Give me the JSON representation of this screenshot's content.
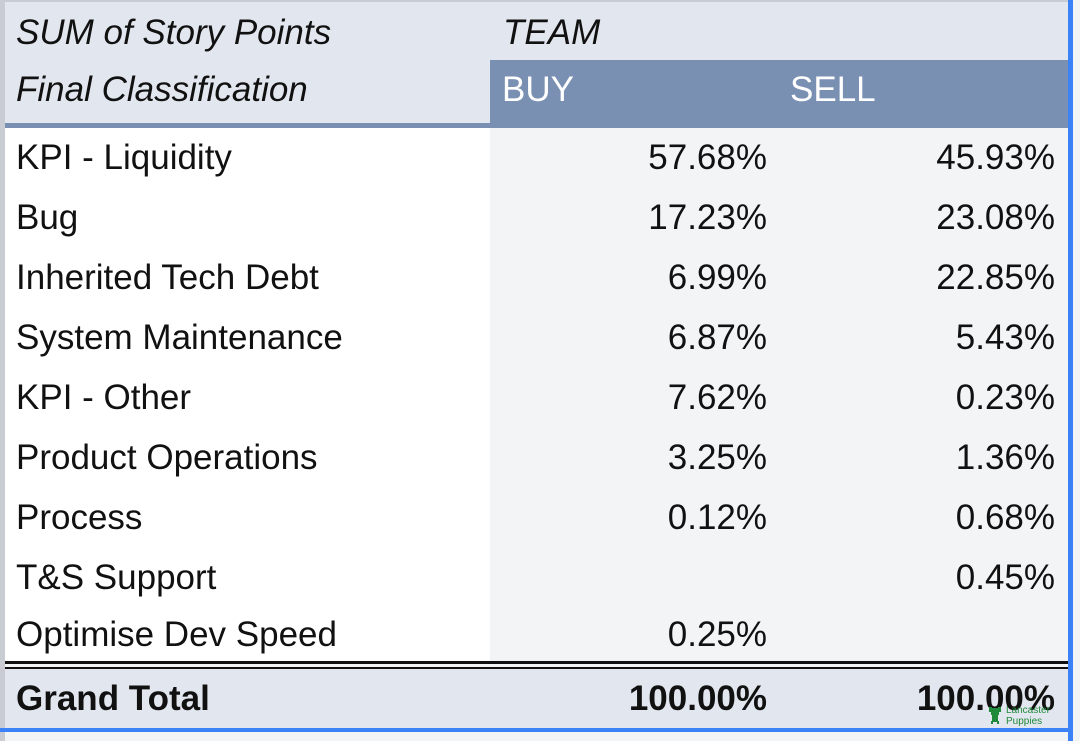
{
  "pivot": {
    "corner_value_label": "SUM of Story Points",
    "column_field_label": "TEAM",
    "row_field_label": "Final Classification",
    "columns": [
      "BUY",
      "SELL"
    ],
    "rows": [
      {
        "label": "KPI - Liquidity",
        "buy": "57.68%",
        "sell": "45.93%"
      },
      {
        "label": "Bug",
        "buy": "17.23%",
        "sell": "23.08%"
      },
      {
        "label": "Inherited Tech Debt",
        "buy": "6.99%",
        "sell": "22.85%"
      },
      {
        "label": "System Maintenance",
        "buy": "6.87%",
        "sell": "5.43%"
      },
      {
        "label": "KPI - Other",
        "buy": "7.62%",
        "sell": "0.23%"
      },
      {
        "label": "Product Operations",
        "buy": "3.25%",
        "sell": "1.36%"
      },
      {
        "label": "Process",
        "buy": "0.12%",
        "sell": "0.68%"
      },
      {
        "label": "T&S Support",
        "buy": "",
        "sell": "0.45%"
      },
      {
        "label": "Optimise Dev Speed",
        "buy": "0.25%",
        "sell": ""
      }
    ],
    "grand_total": {
      "label": "Grand Total",
      "buy": "100.00%",
      "sell": "100.00%"
    }
  },
  "watermark": {
    "line1": "Lancaster",
    "line2": "Puppies",
    "icon": "puppy-icon"
  },
  "colors": {
    "header_bg": "#e2e6ee",
    "column_header_bg": "#7a90b3",
    "selection_border": "#3b82f6"
  }
}
